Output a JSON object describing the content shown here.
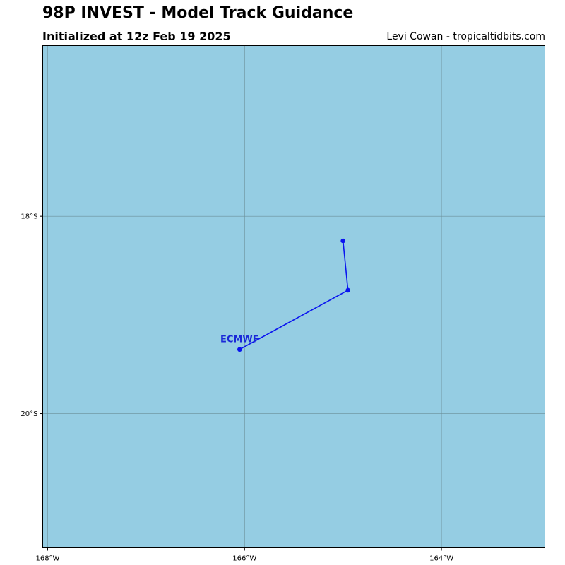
{
  "header": {
    "title": "98P INVEST - Model Track Guidance",
    "subtitle": "Initialized at 12z Feb 19 2025",
    "credit": "Levi Cowan - tropicaltidbits.com"
  },
  "colors": {
    "ocean": "#95cde3",
    "grid": "#6b8f98",
    "track": "#0a14f0",
    "label": "#1a28d8"
  },
  "map": {
    "lon_range": [
      -168.05,
      -162.95
    ],
    "lat_range": [
      -16.27,
      -21.36
    ],
    "grid_lons": [
      -168,
      -166,
      -164
    ],
    "grid_lats": [
      -18,
      -20
    ],
    "lon_tick_labels": [
      "168°W",
      "166°W",
      "164°W"
    ],
    "lat_tick_labels": [
      "18°S",
      "20°S"
    ]
  },
  "tracks": [
    {
      "name": "ECMWF",
      "points": [
        {
          "lon": -165.0,
          "lat": -18.25
        },
        {
          "lon": -164.95,
          "lat": -18.75
        },
        {
          "lon": -166.05,
          "lat": -19.35
        }
      ]
    }
  ]
}
